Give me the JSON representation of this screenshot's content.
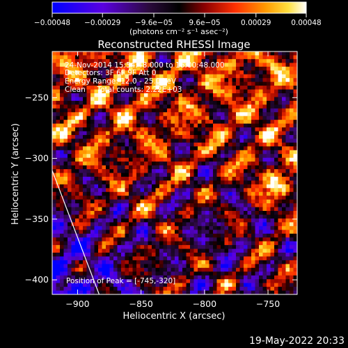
{
  "chart_data": {
    "type": "heatmap",
    "title": "Reconstructed RHESSI Image",
    "xlabel": "Heliocentric X (arcsec)",
    "ylabel": "Heliocentric Y (arcsec)",
    "xlim": [
      -920,
      -727
    ],
    "ylim": [
      -412,
      -212
    ],
    "xticks": [
      -900,
      -850,
      -800,
      -750
    ],
    "xtick_labels": [
      "−900",
      "−850",
      "−800",
      "−750"
    ],
    "yticks": [
      -250,
      -300,
      -350,
      -400
    ],
    "ytick_labels": [
      "−250",
      "−300",
      "−350",
      "−400"
    ],
    "colorbar": {
      "min": -0.00048,
      "max": 0.00048,
      "ticks": [
        -0.00048,
        -0.00029,
        -9.6e-05,
        9.6e-05,
        0.00029,
        0.00048
      ],
      "tick_labels": [
        "−0.00048",
        "−0.00029",
        "−9.6e−05",
        "9.6e−05",
        "0.00029",
        "0.00048"
      ],
      "unit_label": "(photons cm⁻² s⁻¹ asec⁻²)",
      "colormap": [
        "#0000ff",
        "#5a00e0",
        "#2b0a3d",
        "#000000",
        "#8b0000",
        "#ff3000",
        "#ff9a00",
        "#ffe040",
        "#ffffff"
      ]
    },
    "annotations": [
      "24-Nov-2014 15:54:48.000 to 16:00:48.000",
      "Detectors: 3F 6F 9F Att 0",
      "Energy Range: 12.0 - 25.0 keV",
      "Clean     Total counts: 2.22E+03"
    ],
    "peak_label": "Position of Peak = [-745,-320]",
    "peak": {
      "x": -745,
      "y": -320
    },
    "limb_line": [
      {
        "x": -920,
        "y": -310
      },
      {
        "x": -883,
        "y": -412
      }
    ],
    "grid": false
  },
  "footer": {
    "timestamp": "19-May-2022 20:33"
  }
}
